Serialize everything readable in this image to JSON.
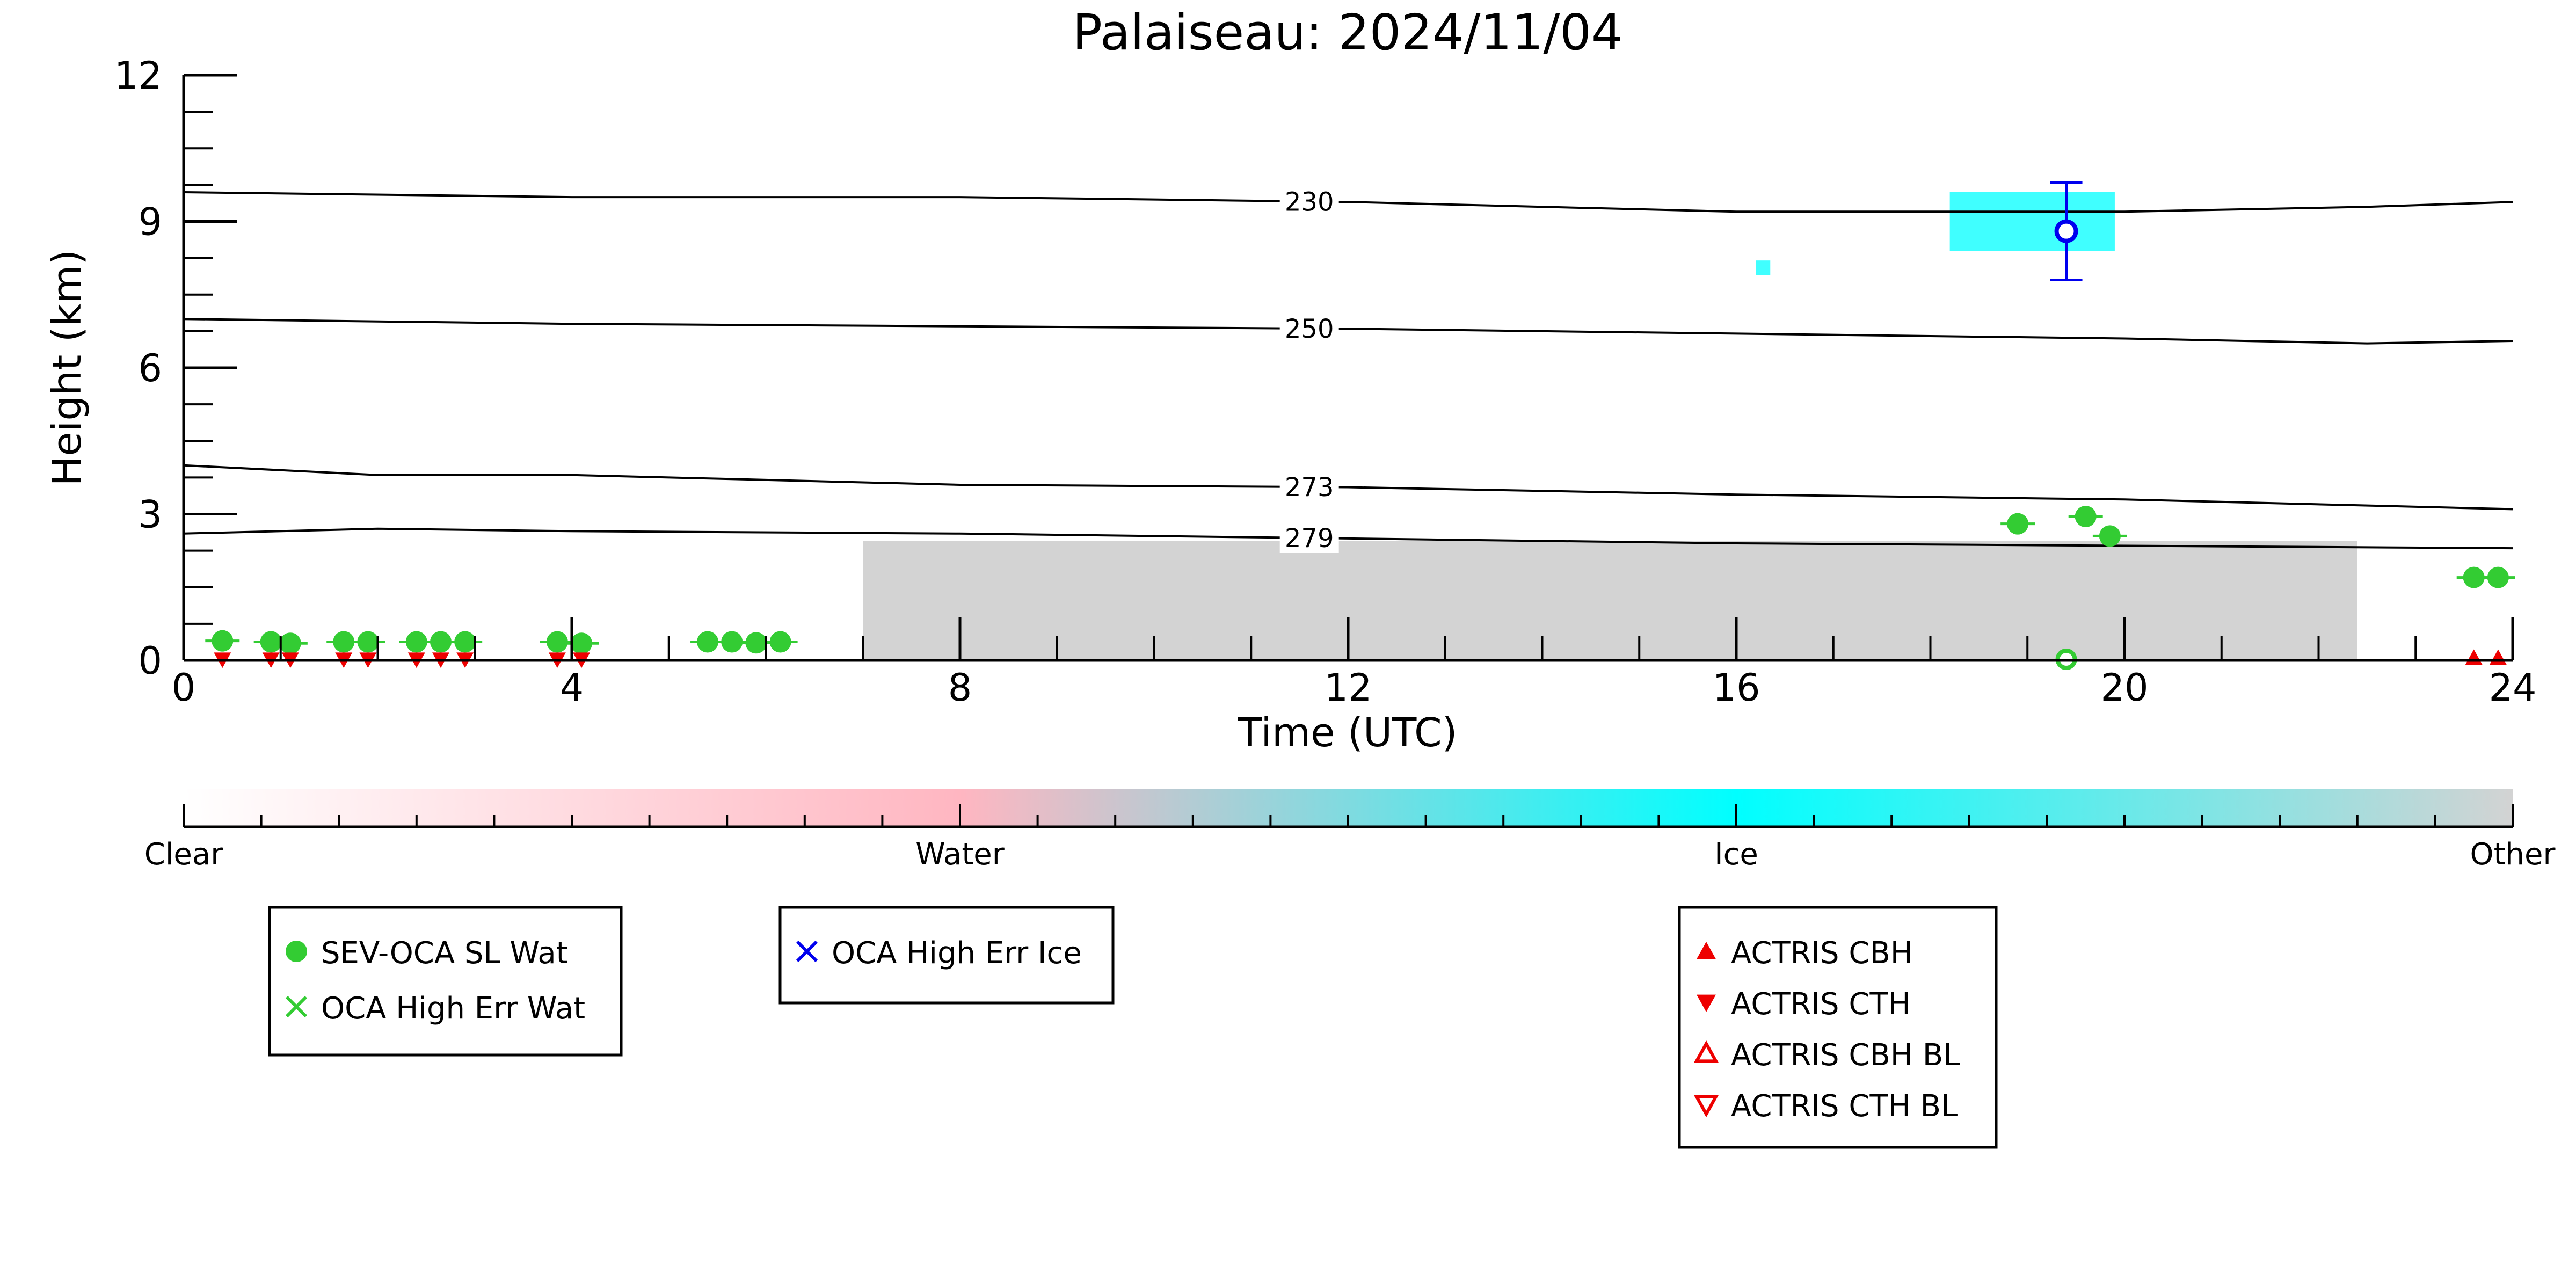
{
  "chart_data": {
    "type": "scatter",
    "title": "Palaiseau: 2024/11/04",
    "xlabel": "Time (UTC)",
    "ylabel": "Height (km)",
    "xlim": [
      0,
      24
    ],
    "ylim": [
      0,
      12
    ],
    "x_ticks": [
      "0",
      "4",
      "8",
      "12",
      "16",
      "20",
      "24"
    ],
    "y_ticks": [
      "0",
      "3",
      "6",
      "9",
      "12"
    ],
    "background_cloud_mask": [
      {
        "class": "Other",
        "x_range": [
          7.0,
          22.4
        ],
        "top_km": 2.45
      },
      {
        "class": "Ice",
        "x_range": [
          18.2,
          19.9
        ],
        "height_range_km": [
          8.4,
          9.6
        ]
      },
      {
        "class": "Ice",
        "x_range": [
          16.2,
          16.35
        ],
        "height_range_km": [
          7.9,
          8.2
        ]
      }
    ],
    "temperature_contours": [
      {
        "label": "230",
        "x": [
          0,
          4,
          8,
          12,
          16,
          20,
          22.5,
          24
        ],
        "y": [
          9.6,
          9.5,
          9.5,
          9.4,
          9.2,
          9.2,
          9.3,
          9.4
        ]
      },
      {
        "label": "250",
        "x": [
          0,
          4,
          8,
          12,
          16,
          20,
          22.5,
          24
        ],
        "y": [
          7.0,
          6.9,
          6.85,
          6.8,
          6.7,
          6.6,
          6.5,
          6.55
        ]
      },
      {
        "label": "273",
        "x": [
          0,
          2,
          4,
          8,
          12,
          16,
          20,
          24
        ],
        "y": [
          4.0,
          3.8,
          3.8,
          3.6,
          3.55,
          3.4,
          3.3,
          3.1
        ]
      },
      {
        "label": "279",
        "x": [
          0,
          2,
          4,
          8,
          12,
          16,
          20,
          24
        ],
        "y": [
          2.6,
          2.7,
          2.65,
          2.6,
          2.5,
          2.4,
          2.35,
          2.3
        ]
      }
    ],
    "series": [
      {
        "name": "SEV-OCA SL Wat",
        "color": "#33cc33",
        "marker": "filled-circle",
        "x": [
          0.4,
          0.9,
          1.1,
          1.65,
          1.9,
          2.4,
          2.65,
          2.9,
          3.85,
          4.1,
          5.4,
          5.65,
          5.9,
          6.15,
          18.9,
          19.6,
          19.85,
          23.6,
          23.85
        ],
        "y": [
          0.4,
          0.38,
          0.35,
          0.38,
          0.38,
          0.38,
          0.38,
          0.38,
          0.38,
          0.35,
          0.38,
          0.38,
          0.36,
          0.38,
          2.8,
          2.95,
          2.55,
          1.7,
          1.7
        ]
      },
      {
        "name": "OCA High Err Wat",
        "color": "#33cc33",
        "marker": "x",
        "x": [
          19.4
        ],
        "y": [
          0.0
        ]
      },
      {
        "name": "OCA High Err Ice",
        "color": "#0000ee",
        "marker": "x",
        "x": [
          19.4
        ],
        "y": [
          8.8
        ],
        "yerr": [
          1.0
        ]
      },
      {
        "name": "ACTRIS CBH",
        "color": "#ee0000",
        "marker": "triangle-up",
        "x": [
          23.6,
          23.85
        ],
        "y": [
          0.05,
          0.05
        ]
      },
      {
        "name": "ACTRIS CTH",
        "color": "#ee0000",
        "marker": "triangle-down",
        "x": [
          0.4,
          0.9,
          1.1,
          1.65,
          1.9,
          2.4,
          2.65,
          2.9,
          3.85,
          4.1
        ],
        "y": [
          0.02,
          0.02,
          0.02,
          0.02,
          0.02,
          0.02,
          0.02,
          0.02,
          0.02,
          0.02
        ]
      },
      {
        "name": "ACTRIS CBH BL",
        "color": "#ee0000",
        "marker": "open-triangle-up",
        "x": [],
        "y": []
      },
      {
        "name": "ACTRIS CTH BL",
        "color": "#ee0000",
        "marker": "open-triangle-down",
        "x": [],
        "y": []
      }
    ],
    "colorbar": {
      "labels": [
        "Clear",
        "Water",
        "Ice",
        "Other"
      ],
      "colors": [
        "#ffffff",
        "#ffb6c1",
        "#00ffff",
        "#d3d3d3"
      ]
    },
    "legends": [
      {
        "entries": [
          {
            "label": "SEV-OCA SL Wat",
            "marker": "filled-circle",
            "color": "#33cc33"
          },
          {
            "label": "OCA High Err Wat",
            "marker": "x",
            "color": "#33cc33"
          }
        ]
      },
      {
        "entries": [
          {
            "label": "OCA High Err Ice",
            "marker": "x",
            "color": "#0000ee"
          }
        ]
      },
      {
        "entries": [
          {
            "label": "ACTRIS CBH",
            "marker": "triangle-up",
            "color": "#ee0000"
          },
          {
            "label": "ACTRIS CTH",
            "marker": "triangle-down",
            "color": "#ee0000"
          },
          {
            "label": "ACTRIS CBH BL",
            "marker": "open-triangle-up",
            "color": "#ee0000"
          },
          {
            "label": "ACTRIS CTH BL",
            "marker": "open-triangle-down",
            "color": "#ee0000"
          }
        ]
      }
    ]
  }
}
